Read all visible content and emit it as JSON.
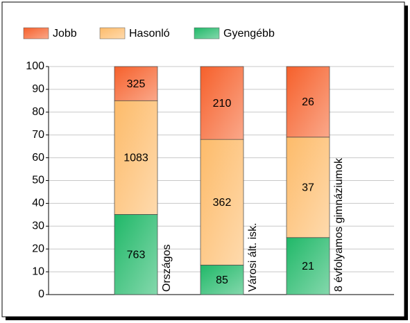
{
  "chart_data": {
    "type": "bar",
    "stacked": "percent",
    "categories": [
      "Országos",
      "Városi ált. isk.",
      "8 évfolyamos gimnáziumok"
    ],
    "series": [
      {
        "name": "Jobb",
        "color": "#f6602b",
        "values": [
          325,
          210,
          26
        ]
      },
      {
        "name": "Hasonló",
        "color": "#fdbb6a",
        "values": [
          1083,
          362,
          37
        ]
      },
      {
        "name": "Gyengébb",
        "color": "#20b868",
        "values": [
          763,
          85,
          21
        ]
      }
    ],
    "ylim": [
      0,
      100
    ],
    "yticks": [
      0,
      10,
      20,
      30,
      40,
      50,
      60,
      70,
      80,
      90,
      100
    ],
    "grid": true,
    "legend": "top-left"
  }
}
